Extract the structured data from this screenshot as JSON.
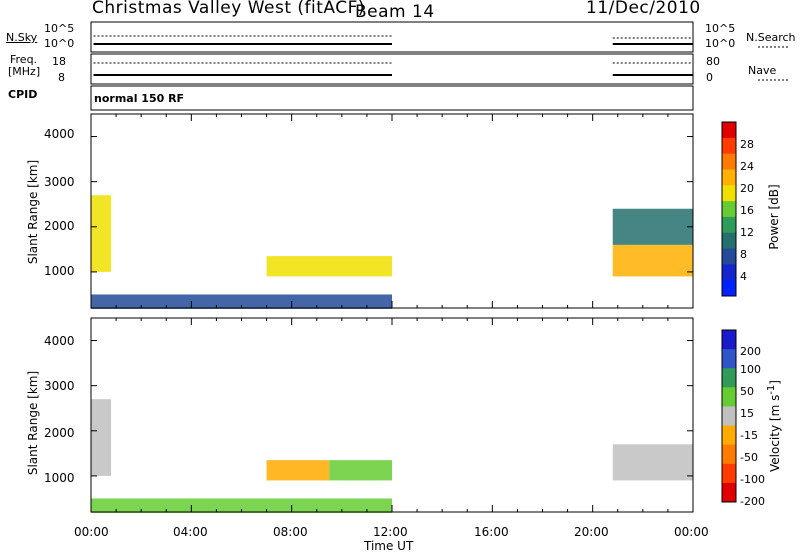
{
  "header": {
    "title": "Christmas Valley West (fitACF)",
    "beam": "Beam 14",
    "date": "11/Dec/2010"
  },
  "panel_nsky": {
    "left_label": "N.Sky",
    "right_label": "N.Search",
    "left_ticks": [
      "10^5",
      "10^0"
    ],
    "right_ticks": [
      "10^5",
      "10^0"
    ]
  },
  "panel_freq": {
    "left_label_1": "Freq.",
    "left_label_2": "[MHz]",
    "right_label": "Nave",
    "left_ticks": [
      "18",
      "8"
    ],
    "right_ticks": [
      "80",
      "0"
    ]
  },
  "panel_cpid": {
    "label": "CPID",
    "text": "normal 150 RF"
  },
  "axes": {
    "x_ticks": [
      "00:00",
      "04:00",
      "08:00",
      "12:00",
      "16:00",
      "20:00",
      "00:00"
    ],
    "x_title": "Time UT",
    "y_title": "Slant Range [km]",
    "y_ticks": [
      "1000",
      "2000",
      "3000",
      "4000"
    ]
  },
  "power_scale": {
    "title": "Power [dB]",
    "labels": [
      "28",
      "24",
      "20",
      "16",
      "12",
      "8",
      "4"
    ],
    "colors": [
      "#e00000",
      "#ff3b00",
      "#ff7a00",
      "#ffb000",
      "#f0e000",
      "#66cc33",
      "#2e9c5a",
      "#25706e",
      "#234b9a",
      "#1427cc",
      "#0022ff"
    ]
  },
  "velocity_scale": {
    "title_line": "Velocity [m s",
    "title_sup": "-1",
    "title_end": "]",
    "labels": [
      "200",
      "100",
      "50",
      "15",
      "-15",
      "-50",
      "-100",
      "-200"
    ],
    "colors": [
      "#1a1acc",
      "#2f56c8",
      "#2f9c5a",
      "#66cc33",
      "#c0c0c0",
      "#ffaa00",
      "#ff7a00",
      "#ff3b00",
      "#e00000"
    ]
  },
  "chart_data": [
    {
      "type": "heatmap",
      "title": "Power [dB]",
      "xlabel": "Time UT",
      "ylabel": "Slant Range [km]",
      "xlim": [
        0,
        24
      ],
      "ylim": [
        200,
        4500
      ],
      "regions": [
        {
          "t_start": 0.0,
          "t_end": 0.8,
          "range_start": 1000,
          "range_end": 2700,
          "value_db": 20
        },
        {
          "t_start": 7.0,
          "t_end": 12.0,
          "range_start": 900,
          "range_end": 1350,
          "value_db": 18
        },
        {
          "t_start": 0.0,
          "t_end": 12.0,
          "range_start": 180,
          "range_end": 500,
          "value_db": 8
        },
        {
          "t_start": 20.8,
          "t_end": 24.0,
          "range_start": 900,
          "range_end": 1600,
          "value_db": 24
        },
        {
          "t_start": 20.8,
          "t_end": 24.0,
          "range_start": 1600,
          "range_end": 2400,
          "value_db": 10
        }
      ]
    },
    {
      "type": "heatmap",
      "title": "Velocity [m s-1]",
      "xlabel": "Time UT",
      "ylabel": "Slant Range [km]",
      "xlim": [
        0,
        24
      ],
      "ylim": [
        200,
        4500
      ],
      "regions": [
        {
          "t_start": 0.0,
          "t_end": 0.8,
          "range_start": 1000,
          "range_end": 2700,
          "value_ms": 0
        },
        {
          "t_start": 7.0,
          "t_end": 9.5,
          "range_start": 900,
          "range_end": 1350,
          "value_ms": -30
        },
        {
          "t_start": 9.5,
          "t_end": 12.0,
          "range_start": 900,
          "range_end": 1350,
          "value_ms": 30
        },
        {
          "t_start": 0.0,
          "t_end": 12.0,
          "range_start": 180,
          "range_end": 500,
          "value_ms": 20
        },
        {
          "t_start": 20.8,
          "t_end": 24.0,
          "range_start": 900,
          "range_end": 1700,
          "value_ms": 0
        }
      ]
    }
  ]
}
